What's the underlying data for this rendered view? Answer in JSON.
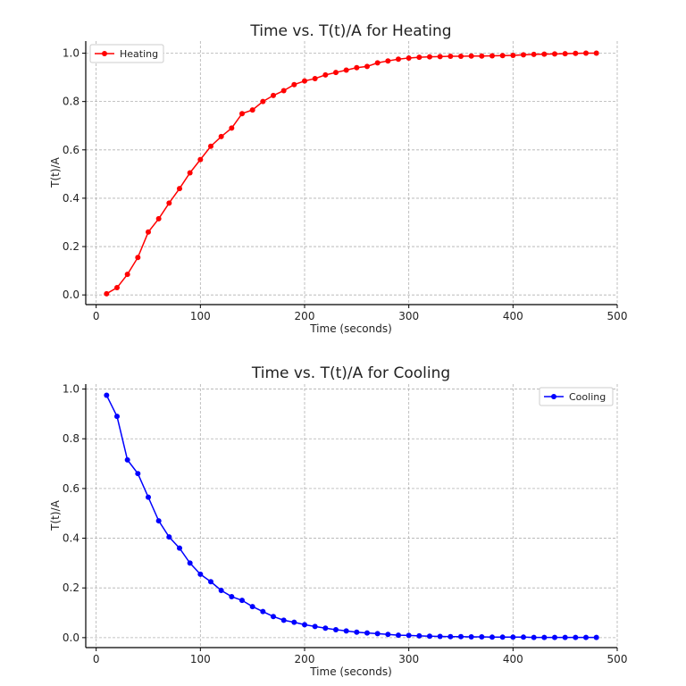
{
  "chart_data": [
    {
      "type": "line",
      "title": "Time vs. T(t)/A for Heating",
      "xlabel": "Time (seconds)",
      "ylabel": "T(t)/A",
      "xlim": [
        -10,
        500
      ],
      "ylim": [
        -0.04,
        1.05
      ],
      "x_ticks": [
        "0",
        "100",
        "200",
        "300",
        "400",
        "500"
      ],
      "y_ticks": [
        "0.0",
        "0.2",
        "0.4",
        "0.6",
        "0.8",
        "1.0"
      ],
      "grid": true,
      "legend_position": "top-left",
      "series": [
        {
          "name": "Heating",
          "color": "#ff0000",
          "x": [
            10,
            20,
            30,
            40,
            50,
            60,
            70,
            80,
            90,
            100,
            110,
            120,
            130,
            140,
            150,
            160,
            170,
            180,
            190,
            200,
            210,
            220,
            230,
            240,
            250,
            260,
            270,
            280,
            290,
            300,
            310,
            320,
            330,
            340,
            350,
            360,
            370,
            380,
            390,
            400,
            410,
            420,
            430,
            440,
            450,
            460,
            470,
            480
          ],
          "y": [
            0.005,
            0.03,
            0.085,
            0.155,
            0.26,
            0.315,
            0.38,
            0.44,
            0.505,
            0.56,
            0.615,
            0.655,
            0.69,
            0.75,
            0.765,
            0.8,
            0.825,
            0.845,
            0.87,
            0.885,
            0.895,
            0.91,
            0.92,
            0.93,
            0.94,
            0.945,
            0.96,
            0.968,
            0.975,
            0.98,
            0.983,
            0.985,
            0.986,
            0.987,
            0.987,
            0.988,
            0.988,
            0.989,
            0.99,
            0.991,
            0.993,
            0.995,
            0.996,
            0.997,
            0.998,
            0.999,
            1.0,
            1.0
          ]
        }
      ]
    },
    {
      "type": "line",
      "title": "Time vs. T(t)/A for Cooling",
      "xlabel": "Time (seconds)",
      "ylabel": "T(t)/A",
      "xlim": [
        -10,
        500
      ],
      "ylim": [
        -0.04,
        1.02
      ],
      "x_ticks": [
        "0",
        "100",
        "200",
        "300",
        "400",
        "500"
      ],
      "y_ticks": [
        "0.0",
        "0.2",
        "0.4",
        "0.6",
        "0.8",
        "1.0"
      ],
      "grid": true,
      "legend_position": "top-right",
      "series": [
        {
          "name": "Cooling",
          "color": "#0000ff",
          "x": [
            10,
            20,
            30,
            40,
            50,
            60,
            70,
            80,
            90,
            100,
            110,
            120,
            130,
            140,
            150,
            160,
            170,
            180,
            190,
            200,
            210,
            220,
            230,
            240,
            250,
            260,
            270,
            280,
            290,
            300,
            310,
            320,
            330,
            340,
            350,
            360,
            370,
            380,
            390,
            400,
            410,
            420,
            430,
            440,
            450,
            460,
            470,
            480
          ],
          "y": [
            0.975,
            0.89,
            0.715,
            0.66,
            0.565,
            0.47,
            0.405,
            0.36,
            0.3,
            0.255,
            0.225,
            0.19,
            0.165,
            0.15,
            0.125,
            0.105,
            0.085,
            0.07,
            0.062,
            0.052,
            0.045,
            0.038,
            0.032,
            0.027,
            0.022,
            0.019,
            0.016,
            0.013,
            0.01,
            0.009,
            0.007,
            0.006,
            0.005,
            0.004,
            0.004,
            0.003,
            0.003,
            0.002,
            0.002,
            0.002,
            0.002,
            0.001,
            0.001,
            0.001,
            0.001,
            0.001,
            0.001,
            0.001
          ]
        }
      ]
    }
  ]
}
